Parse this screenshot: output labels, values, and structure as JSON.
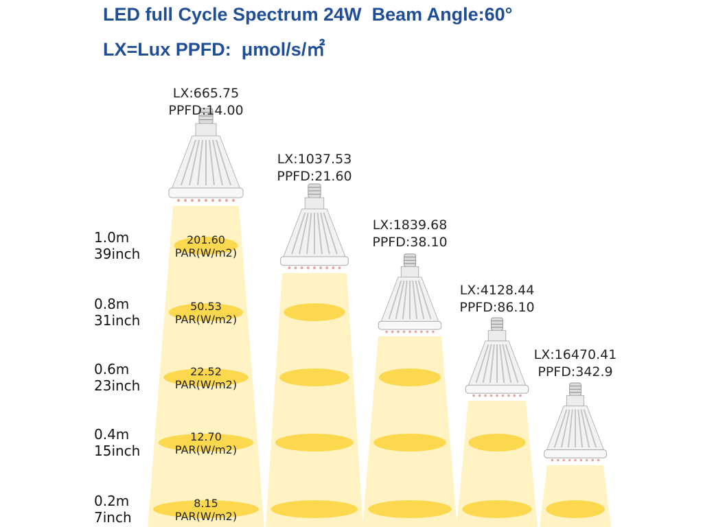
{
  "header": {
    "line1": "LED full Cycle Spectrum 24W  Beam Angle:60°",
    "line2": "LX=Lux PPFD:  μmol/s/㎡"
  },
  "colors": {
    "title": "#1f4e96",
    "beam": "#fff3c4",
    "spot": "#fbd84e",
    "bulb": "#f2f2f2"
  },
  "distances": [
    {
      "m": "1.0m",
      "inch": "39inch"
    },
    {
      "m": "0.8m",
      "inch": "31inch"
    },
    {
      "m": "0.6m",
      "inch": "23inch"
    },
    {
      "m": "0.4m",
      "inch": "15inch"
    },
    {
      "m": "0.2m",
      "inch": "7inch"
    }
  ],
  "par_unit": "PAR(W/m2)",
  "par_values": [
    "201.60",
    "50.53",
    "22.52",
    "12.70",
    "8.15"
  ],
  "lamps": [
    {
      "height": "1.0m",
      "lx": "LX:665.75",
      "ppfd": "PPFD:14.00"
    },
    {
      "height": "0.8m",
      "lx": "LX:1037.53",
      "ppfd": "PPFD:21.60"
    },
    {
      "height": "0.6m",
      "lx": "LX:1839.68",
      "ppfd": "PPFD:38.10"
    },
    {
      "height": "0.4m",
      "lx": "LX:4128.44",
      "ppfd": "PPFD:86.10"
    },
    {
      "height": "0.2m",
      "lx": "LX:16470.41",
      "ppfd": "PPFD:342.9"
    }
  ]
}
